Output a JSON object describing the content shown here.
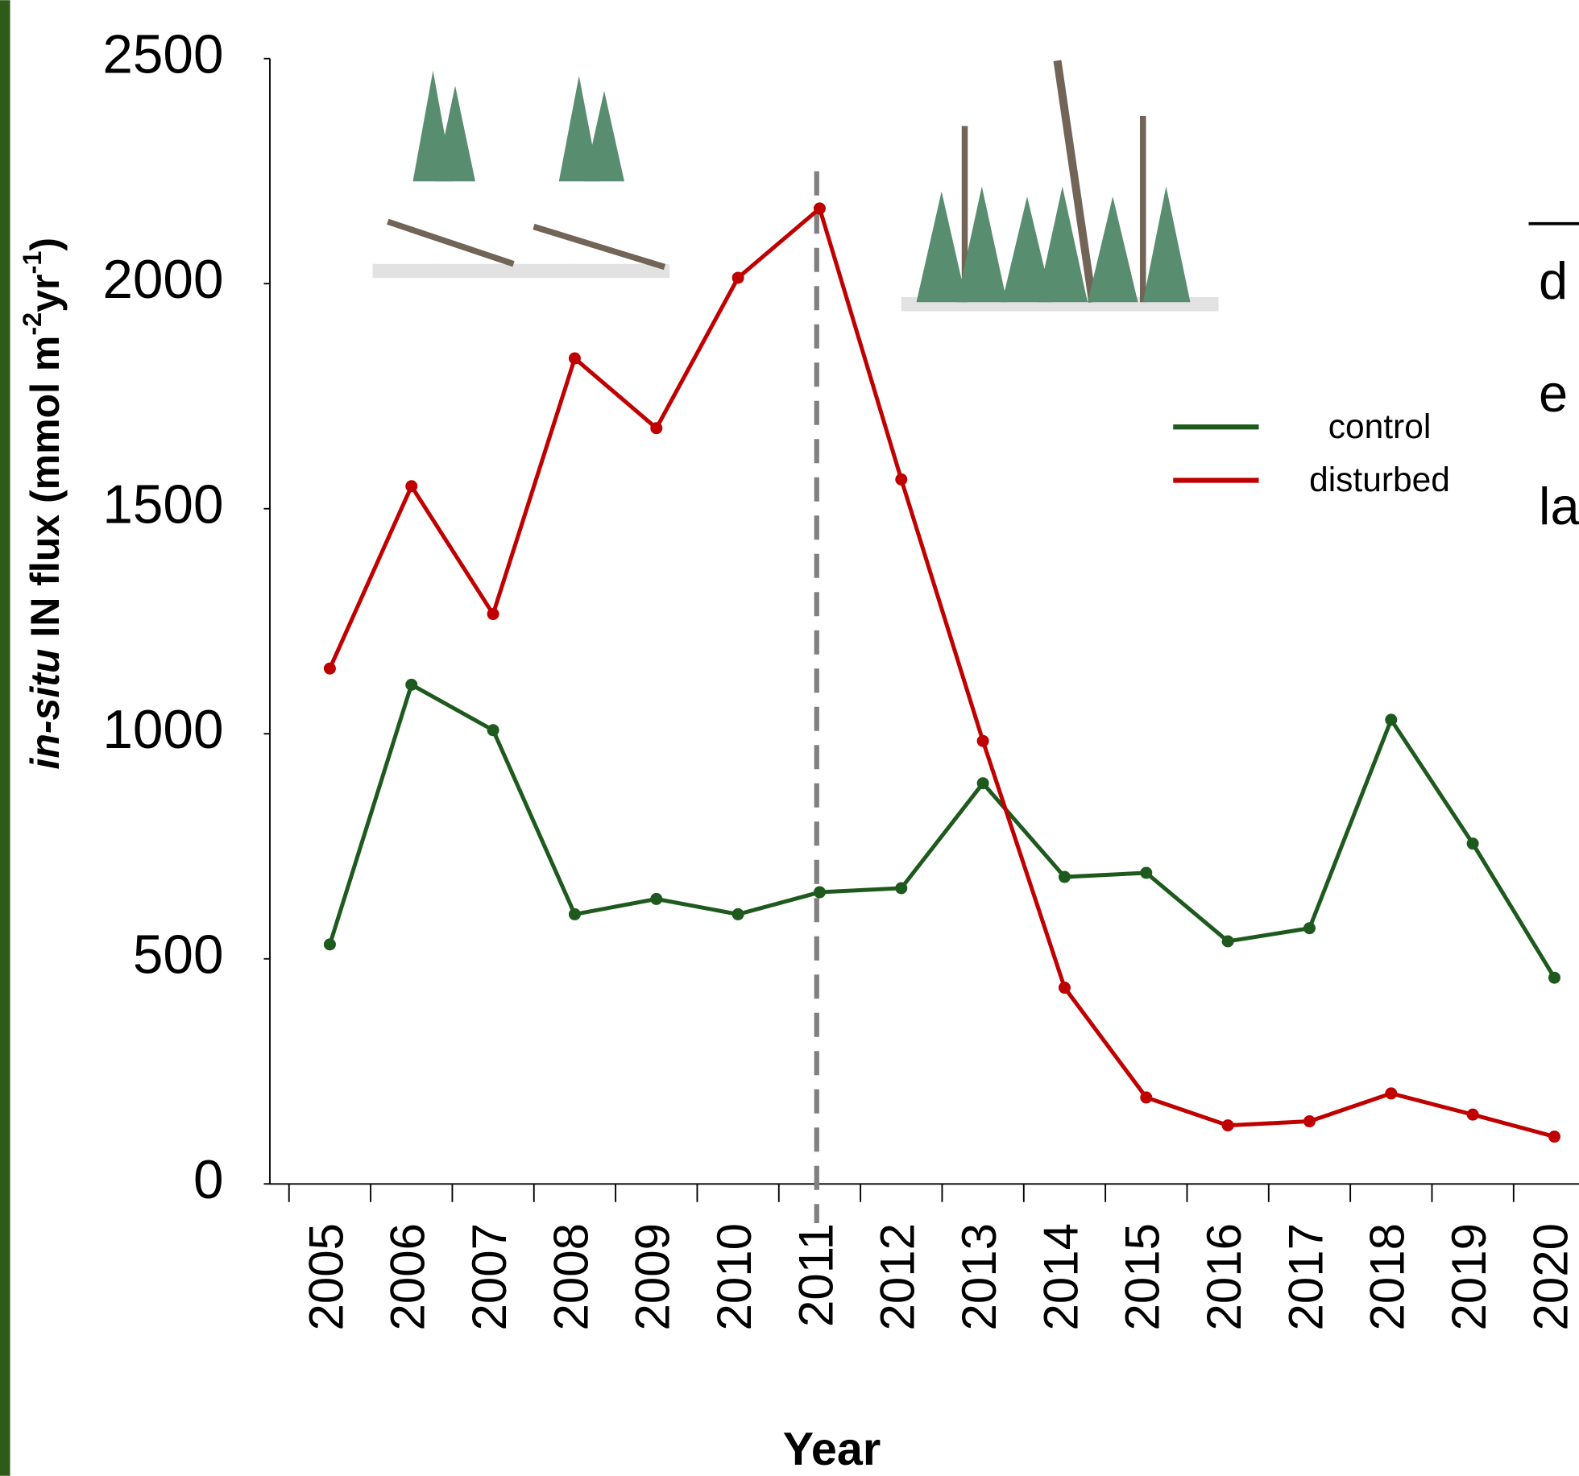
{
  "chart_data": {
    "type": "line",
    "x_label": "Year",
    "y_label": {
      "italic": "in-situ",
      "text": " IN flux (mmol m",
      "sup1": "-2",
      "mid": "yr",
      "sup2": "-1",
      "end": ")"
    },
    "categories": [
      "2005",
      "2006",
      "2007",
      "2008",
      "2009",
      "2010",
      "2011",
      "2012",
      "2013",
      "2014",
      "2015",
      "2016",
      "2017",
      "2018",
      "2019",
      "2020"
    ],
    "series": [
      {
        "name": "control",
        "color": "#1e5a1e",
        "values": [
          532,
          1109,
          1008,
          599,
          633,
          599,
          648,
          657,
          890,
          682,
          691,
          539,
          568,
          1031,
          756,
          458
        ]
      },
      {
        "name": "disturbed",
        "color": "#c00000",
        "values": [
          1145,
          1550,
          1266,
          1834,
          1679,
          2013,
          2167,
          1565,
          984,
          436,
          192,
          130,
          139,
          201,
          154,
          105
        ]
      }
    ],
    "ylim": [
      0,
      2500
    ],
    "yticks": [
      0,
      500,
      1000,
      1500,
      2000,
      2500
    ],
    "grid": false,
    "legend": "right",
    "side_text": [
      "d",
      "e",
      "la"
    ]
  }
}
